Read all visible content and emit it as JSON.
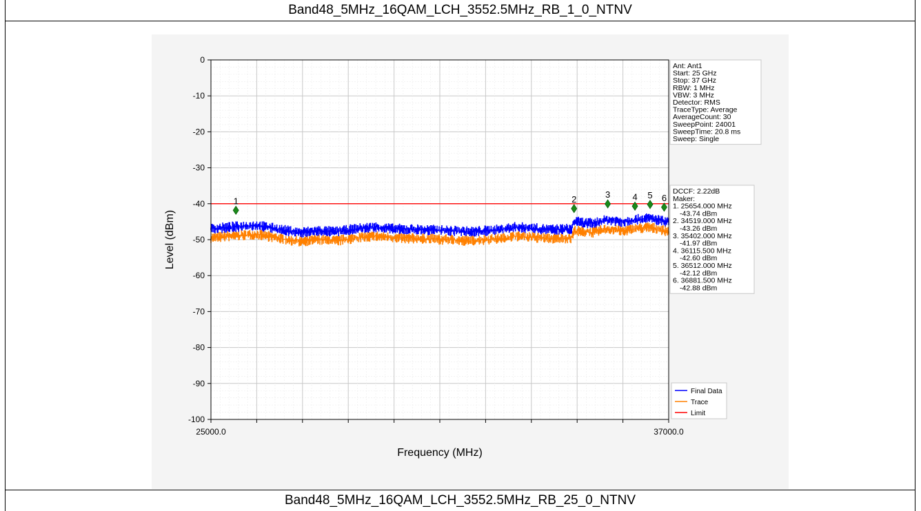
{
  "header": {
    "title": "Band48_5MHz_16QAM_LCH_3552.5MHz_RB_1_0_NTNV"
  },
  "footer": {
    "title": "Band48_5MHz_16QAM_LCH_3552.5MHz_RB_25_0_NTNV"
  },
  "chart_data": {
    "type": "line",
    "xlabel": "Frequency (MHz)",
    "ylabel": "Level (dBm)",
    "xlim": [
      25000,
      37000
    ],
    "ylim": [
      -100,
      0
    ],
    "x_tick_labels": [
      "25000.0",
      "37000.0"
    ],
    "y_ticks": [
      0,
      -10,
      -20,
      -30,
      -40,
      -50,
      -60,
      -70,
      -80,
      -90,
      -100
    ],
    "y_tick_labels": [
      "0",
      "-10",
      "-20",
      "-30",
      "-40",
      "-50",
      "-60",
      "-70",
      "-80",
      "-90",
      "-100"
    ],
    "grid": true,
    "limit_line": -40,
    "series": [
      {
        "name": "Final Data",
        "color": "#0000ff",
        "x": [
          25000,
          25500,
          26200,
          27000,
          27300,
          27800,
          28300,
          28800,
          29300,
          29800,
          30500,
          31200,
          31800,
          32600,
          33000,
          33400,
          33900,
          34450,
          34520,
          35000,
          35400,
          35800,
          36100,
          36500,
          36900,
          37000
        ],
        "y": [
          -47,
          -46.5,
          -46,
          -47.5,
          -48,
          -47.5,
          -47.8,
          -47,
          -46.5,
          -47,
          -47.2,
          -47.5,
          -47.8,
          -47.2,
          -46.5,
          -46.8,
          -47.2,
          -47,
          -45,
          -45.5,
          -44.5,
          -45,
          -44.5,
          -44,
          -45,
          -45.2
        ]
      },
      {
        "name": "Trace",
        "color": "#ff8000",
        "x": [
          25000,
          25500,
          26200,
          27000,
          27300,
          27800,
          28300,
          28800,
          29300,
          29800,
          30500,
          31200,
          31800,
          32600,
          33000,
          33400,
          33900,
          34450,
          34520,
          35000,
          35400,
          35800,
          36100,
          36500,
          36900,
          37000
        ],
        "y": [
          -49.5,
          -49,
          -48.5,
          -50,
          -50.5,
          -50,
          -50.3,
          -49.5,
          -49,
          -49.5,
          -49.7,
          -50,
          -50.3,
          -49.7,
          -49,
          -49.3,
          -49.7,
          -49.5,
          -47.5,
          -48,
          -47,
          -47.5,
          -47,
          -46.5,
          -47.5,
          -47.7
        ]
      },
      {
        "name": "Limit",
        "color": "#ff0000",
        "x": [
          25000,
          37000
        ],
        "y": [
          -40,
          -40
        ]
      }
    ],
    "markers": [
      {
        "label": "1",
        "x": 25654.0,
        "y": -43.74
      },
      {
        "label": "2",
        "x": 34519.0,
        "y": -43.26
      },
      {
        "label": "3",
        "x": 35402.0,
        "y": -41.97
      },
      {
        "label": "4",
        "x": 36115.5,
        "y": -42.6
      },
      {
        "label": "5",
        "x": 36512.0,
        "y": -42.12
      },
      {
        "label": "6",
        "x": 36881.5,
        "y": -42.88
      }
    ],
    "settings_box": [
      "Ant: Ant1",
      "Start: 25 GHz",
      "Stop: 37 GHz",
      "RBW: 1 MHz",
      "VBW: 3 MHz",
      "Detector: RMS",
      "TraceType: Average",
      "AverageCount: 30",
      "SweepPoint: 24001",
      "SweepTime: 20.8 ms",
      "Sweep: Single"
    ],
    "marker_box": [
      "DCCF: 2.22dB",
      "Maker:",
      "1. 25654.000 MHz",
      "-43.74 dBm",
      "2. 34519.000 MHz",
      "-43.26 dBm",
      "3. 35402.000 MHz",
      "-41.97 dBm",
      "4. 36115.500 MHz",
      "-42.60 dBm",
      "5. 36512.000 MHz",
      "-42.12 dBm",
      "6. 36881.500 MHz",
      "-42.88 dBm"
    ],
    "legend": [
      "Final Data",
      "Trace",
      "Limit"
    ],
    "legend_position": "bottom-right",
    "colors": {
      "limit": "#ff0000",
      "marker": "#1a8a1a",
      "final": "#0000ff",
      "trace": "#ff8000"
    }
  }
}
